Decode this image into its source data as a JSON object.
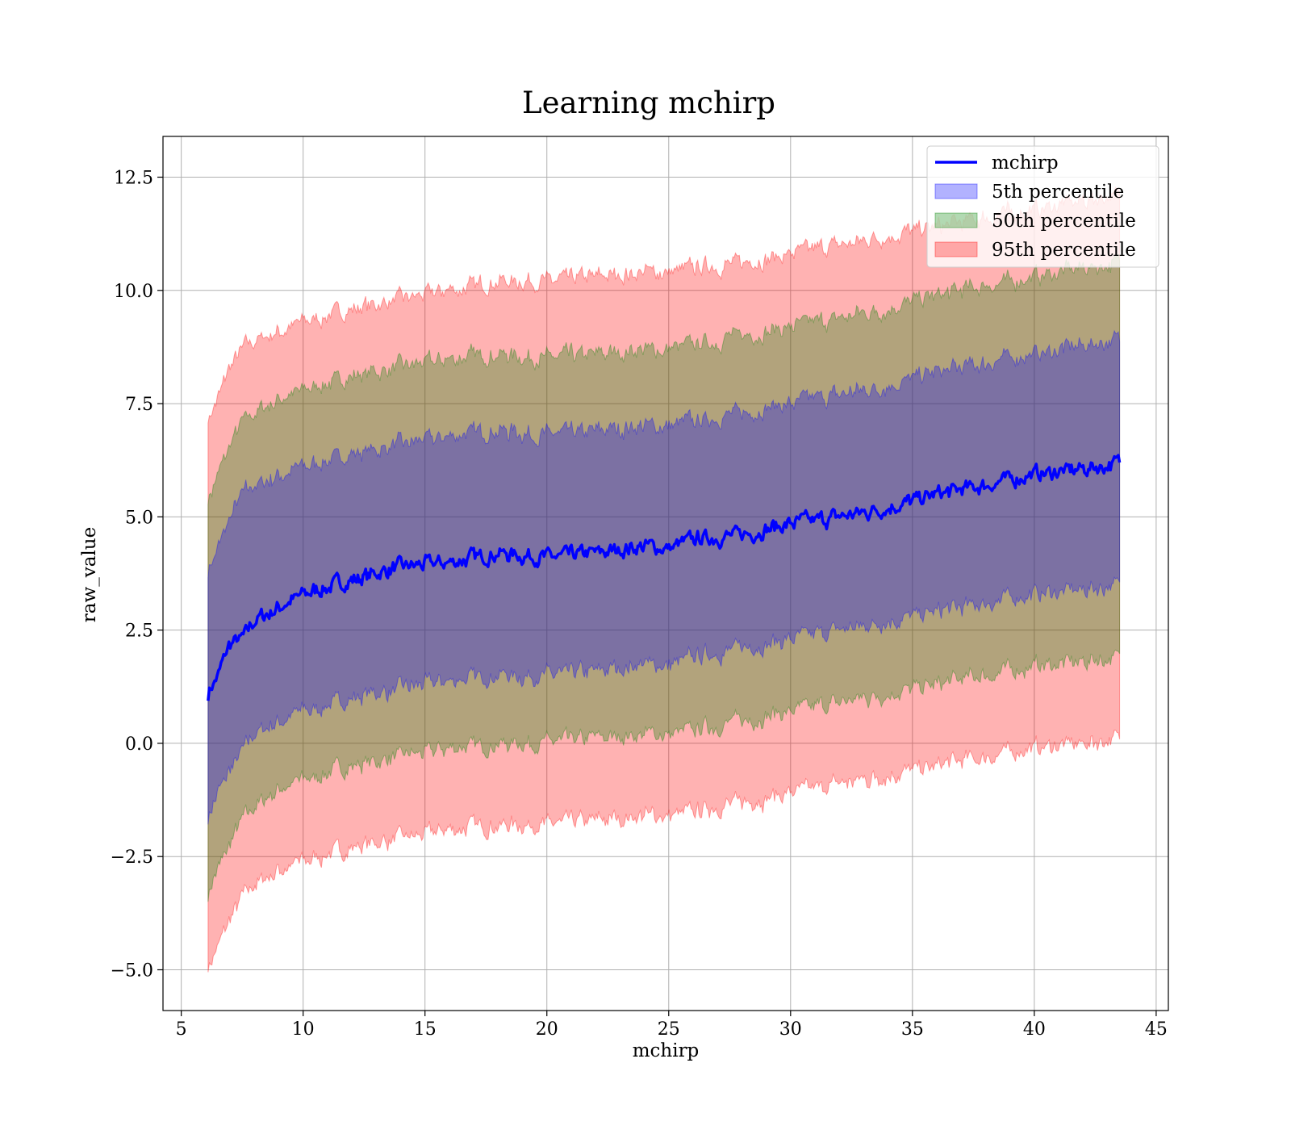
{
  "chart_data": {
    "type": "area",
    "title": "Learning mchirp",
    "xlabel": "mchirp",
    "ylabel": "raw_value",
    "xlim": [
      4.25,
      45.5
    ],
    "ylim": [
      -5.9,
      13.4
    ],
    "xticks": [
      5,
      10,
      15,
      20,
      25,
      30,
      35,
      40,
      45
    ],
    "xtick_labels": [
      "5",
      "10",
      "15",
      "20",
      "25",
      "30",
      "35",
      "40",
      "45"
    ],
    "yticks": [
      -5.0,
      -2.5,
      0.0,
      2.5,
      5.0,
      7.5,
      10.0,
      12.5
    ],
    "ytick_labels": [
      "−5.0",
      "−2.5",
      "0.0",
      "2.5",
      "5.0",
      "7.5",
      "10.0",
      "12.5"
    ],
    "grid": true,
    "legend_position": "top-right",
    "x": [
      6.1,
      6.5,
      7.0,
      7.5,
      8.0,
      9.0,
      10.0,
      12.0,
      14.0,
      16.0,
      18.0,
      20.0,
      22.0,
      24.0,
      25.0,
      26.0,
      28.0,
      30.0,
      32.0,
      34.0,
      36.0,
      38.0,
      40.0,
      42.0,
      43.5
    ],
    "series": [
      {
        "name": "mchirp",
        "kind": "line",
        "color": "#0000ff",
        "values": [
          1.1,
          1.5,
          2.2,
          2.3,
          2.7,
          3.0,
          3.3,
          3.6,
          3.9,
          4.0,
          4.2,
          4.1,
          4.2,
          4.35,
          4.3,
          4.5,
          4.6,
          4.85,
          5.0,
          5.2,
          5.5,
          5.7,
          5.95,
          6.05,
          6.2
        ]
      },
      {
        "name": "5th percentile",
        "kind": "band",
        "color": "#0000ff",
        "upper": [
          3.8,
          4.3,
          5.0,
          5.5,
          5.7,
          5.9,
          6.1,
          6.4,
          6.6,
          6.8,
          6.9,
          6.8,
          6.9,
          7.0,
          7.0,
          7.1,
          7.3,
          7.5,
          7.7,
          7.9,
          8.2,
          8.4,
          8.6,
          8.8,
          8.9
        ],
        "lower": [
          -1.6,
          -1.1,
          -0.6,
          -0.2,
          0.2,
          0.5,
          0.7,
          1.0,
          1.2,
          1.4,
          1.5,
          1.5,
          1.6,
          1.75,
          1.7,
          1.9,
          2.1,
          2.3,
          2.5,
          2.7,
          2.9,
          3.1,
          3.3,
          3.4,
          3.5
        ]
      },
      {
        "name": "50th percentile",
        "kind": "band",
        "color": "#008000",
        "upper": [
          5.4,
          5.9,
          6.6,
          7.1,
          7.3,
          7.6,
          7.8,
          8.1,
          8.3,
          8.5,
          8.6,
          8.5,
          8.6,
          8.7,
          8.7,
          8.8,
          9.0,
          9.2,
          9.4,
          9.6,
          9.9,
          10.1,
          10.3,
          10.5,
          10.6
        ],
        "lower": [
          -3.3,
          -2.8,
          -2.2,
          -1.7,
          -1.4,
          -1.0,
          -0.8,
          -0.5,
          -0.3,
          -0.1,
          0.0,
          0.0,
          0.1,
          0.2,
          0.2,
          0.3,
          0.5,
          0.7,
          0.9,
          1.1,
          1.3,
          1.5,
          1.7,
          1.8,
          1.9
        ]
      },
      {
        "name": "95th percentile",
        "kind": "band",
        "color": "#ff0000",
        "upper": [
          7.2,
          7.6,
          8.3,
          8.7,
          8.9,
          9.1,
          9.3,
          9.6,
          9.8,
          10.0,
          10.2,
          10.2,
          10.3,
          10.4,
          10.4,
          10.5,
          10.6,
          10.8,
          11.0,
          11.2,
          11.4,
          11.6,
          11.8,
          12.0,
          12.1
        ],
        "lower": [
          -4.9,
          -4.5,
          -3.9,
          -3.4,
          -3.1,
          -2.8,
          -2.6,
          -2.3,
          -2.1,
          -1.9,
          -1.8,
          -1.8,
          -1.7,
          -1.6,
          -1.6,
          -1.5,
          -1.3,
          -1.1,
          -0.9,
          -0.7,
          -0.5,
          -0.3,
          -0.1,
          0.0,
          0.1
        ]
      }
    ]
  }
}
